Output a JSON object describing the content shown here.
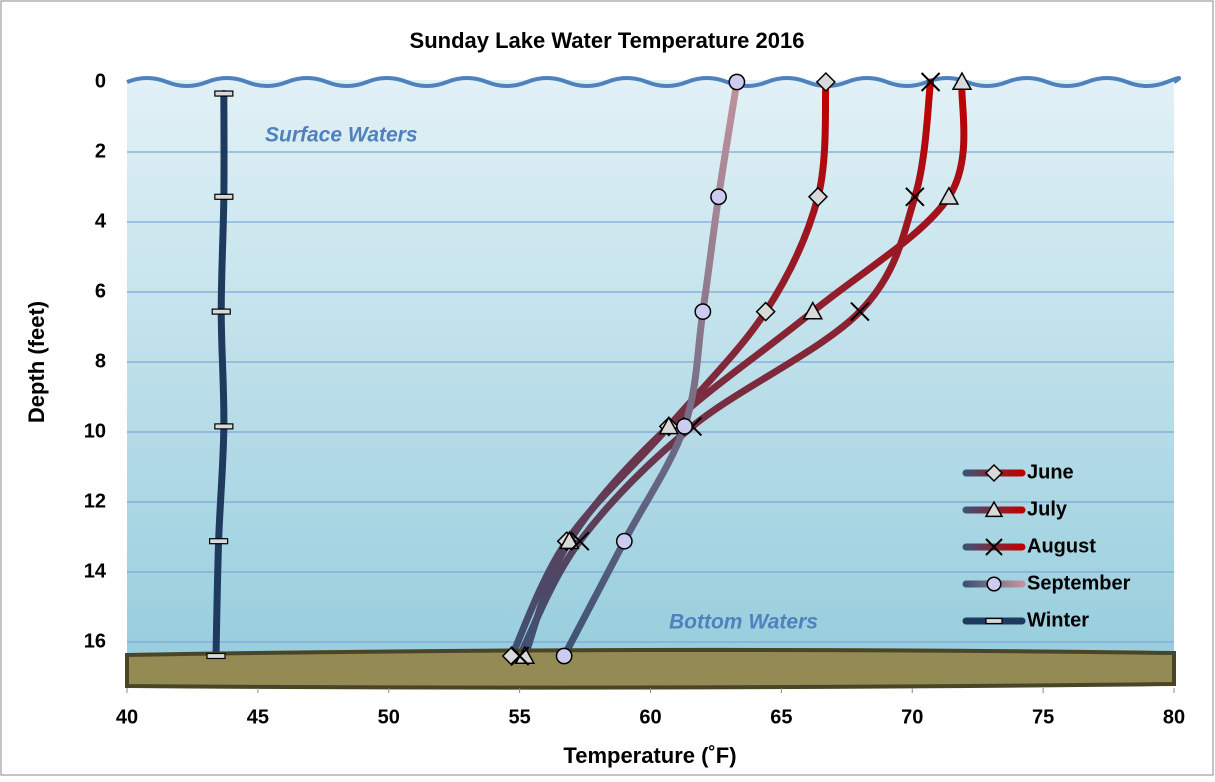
{
  "chart_data": {
    "type": "line",
    "title": "Sunday Lake Water Temperature 2016",
    "x_label": "Temperature  (˚F)",
    "y_label": "Depth (feet)",
    "annotations": [
      "Surface Waters",
      "Bottom Waters"
    ],
    "y": [
      0,
      3.28,
      6.56,
      9.84,
      13.12,
      16.4
    ],
    "series": [
      {
        "name": "June",
        "marker": "diamond",
        "color": "#c00000",
        "color_bottom": "#3e5275",
        "values": [
          66.7,
          66.4,
          64.4,
          60.7,
          56.8,
          54.7
        ]
      },
      {
        "name": "July",
        "marker": "triangle",
        "color": "#c00000",
        "color_bottom": "#3e5275",
        "values": [
          71.9,
          71.4,
          66.2,
          60.7,
          56.9,
          55.2
        ]
      },
      {
        "name": "August",
        "marker": "x",
        "color": "#c00000",
        "color_bottom": "#3e5275",
        "values": [
          70.7,
          70.1,
          68.0,
          61.6,
          57.3,
          55.0
        ]
      },
      {
        "name": "September",
        "marker": "circle",
        "color": "#c0929c",
        "color_bottom": "#3e5275",
        "values": [
          63.3,
          62.6,
          62.0,
          61.3,
          59.0,
          56.7
        ]
      },
      {
        "name": "Winter",
        "marker": "dash",
        "color": "#1f3a5f",
        "color_bottom": "#1f3a5f",
        "y": [
          0.33,
          3.28,
          6.56,
          9.84,
          13.12,
          16.4
        ],
        "values": [
          43.7,
          43.7,
          43.6,
          43.7,
          43.5,
          43.4
        ]
      }
    ],
    "xlim": [
      40,
      80
    ],
    "xticks": [
      40,
      45,
      50,
      55,
      60,
      65,
      70,
      75,
      80
    ],
    "ylim": [
      0,
      17.3
    ],
    "yticks": [
      0,
      2,
      4,
      6,
      8,
      10,
      12,
      14,
      16
    ],
    "y_inverted": true,
    "grid": true,
    "legend": "lower right"
  }
}
